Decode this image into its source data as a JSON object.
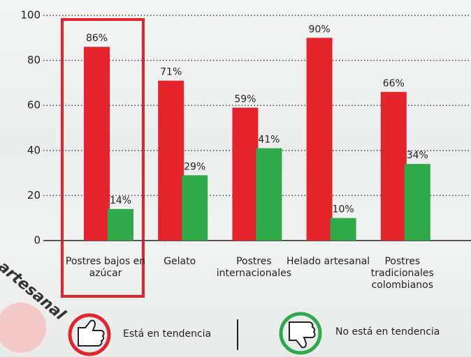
{
  "chart_data": {
    "type": "bar",
    "categories": [
      "Postres bajos en azúcar",
      "Gelato",
      "Postres internacionales",
      "Helado artesanal",
      "Postres tradicionales colombianos"
    ],
    "series": [
      {
        "name": "Está en tendencia",
        "color": "#e3242b",
        "values": [
          86,
          71,
          59,
          90,
          66
        ],
        "value_labels": [
          "86%",
          "71%",
          "59%",
          "90%",
          "66%"
        ]
      },
      {
        "name": "No está en tendencia",
        "color": "#2eaa4a",
        "values": [
          14,
          29,
          41,
          10,
          34
        ],
        "value_labels": [
          "14%",
          "29%",
          "41%",
          "10%",
          "34%"
        ]
      }
    ],
    "ylim": [
      0,
      100
    ],
    "yticks": [
      0,
      20,
      40,
      60,
      80,
      100
    ],
    "grid": true,
    "annotation": "artesanal"
  }
}
